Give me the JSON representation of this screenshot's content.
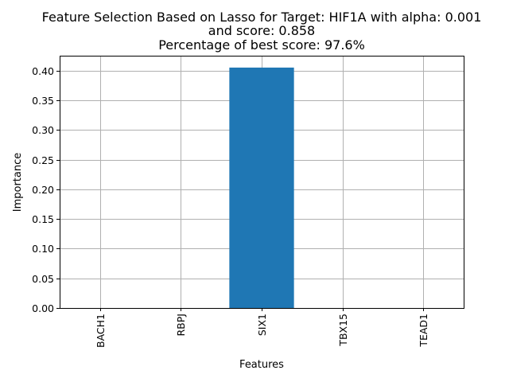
{
  "chart_data": {
    "type": "bar",
    "title_lines": [
      "Feature Selection Based on Lasso for Target: HIF1A with alpha: 0.001",
      "and score: 0.858",
      "Percentage of best score: 97.6%"
    ],
    "xlabel": "Features",
    "ylabel": "Importance",
    "categories": [
      "BACH1",
      "RBPJ",
      "SIX1",
      "TBX15",
      "TEAD1"
    ],
    "values": [
      0.0,
      0.0,
      0.405,
      0.0,
      0.0
    ],
    "ylim": [
      0,
      0.425
    ],
    "yticks": [
      0.0,
      0.05,
      0.1,
      0.15,
      0.2,
      0.25,
      0.3,
      0.35,
      0.4
    ],
    "ytick_labels": [
      "0.00",
      "0.05",
      "0.10",
      "0.15",
      "0.20",
      "0.25",
      "0.30",
      "0.35",
      "0.40"
    ],
    "grid": true,
    "bar_color": "#1f77b4",
    "grid_color": "#b0b0b0"
  }
}
